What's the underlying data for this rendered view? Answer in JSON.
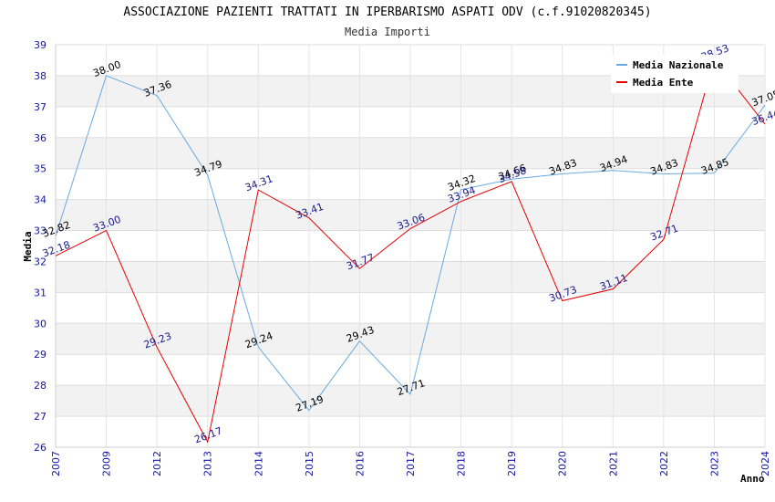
{
  "header": {
    "title": "ASSOCIAZIONE PAZIENTI TRATTATI IN IPERBARISMO ASPATI ODV (c.f.91020820345)",
    "subtitle": "Media Importi"
  },
  "chart_data": {
    "type": "line",
    "title": "ASSOCIAZIONE PAZIENTI TRATTATI IN IPERBARISMO ASPATI ODV (c.f.91020820345)",
    "subtitle": "Media Importi",
    "xlabel": "Anno",
    "ylabel": "Media",
    "categories": [
      "2007",
      "2009",
      "2012",
      "2013",
      "2014",
      "2015",
      "2016",
      "2017",
      "2018",
      "2019",
      "2020",
      "2021",
      "2022",
      "2023",
      "2024"
    ],
    "ylim": [
      26,
      39
    ],
    "yticks": [
      26,
      27,
      28,
      29,
      30,
      31,
      32,
      33,
      34,
      35,
      36,
      37,
      38,
      39
    ],
    "grid": true,
    "legend_position": "top-right",
    "series": [
      {
        "name": "Media Nazionale",
        "color": "#6aa9e0",
        "label_color": "#000000",
        "values": [
          32.82,
          38.0,
          37.36,
          34.79,
          29.24,
          27.19,
          29.43,
          27.71,
          34.32,
          34.66,
          34.83,
          34.94,
          34.83,
          34.85,
          37.05
        ],
        "labels": [
          "32.82",
          "38.00",
          "37.36",
          "34.79",
          "29.24",
          "27.19",
          "29.43",
          "27.71",
          "34.32",
          "34.66",
          "34.83",
          "34.94",
          "34.83",
          "34.85",
          "37.05"
        ]
      },
      {
        "name": "Media Ente",
        "color": "#e60000",
        "label_color": "#1a1a8c",
        "values": [
          32.18,
          33.0,
          29.23,
          26.17,
          34.31,
          33.41,
          31.77,
          33.06,
          33.94,
          34.58,
          30.73,
          31.11,
          32.71,
          38.53,
          36.44
        ],
        "labels": [
          "32.18",
          "33.00",
          "29.23",
          "26.17",
          "34.31",
          "33.41",
          "31.77",
          "33.06",
          "33.94",
          "34.58",
          "30.73",
          "31.11",
          "32.71",
          "38.53",
          "36.44"
        ]
      }
    ]
  }
}
